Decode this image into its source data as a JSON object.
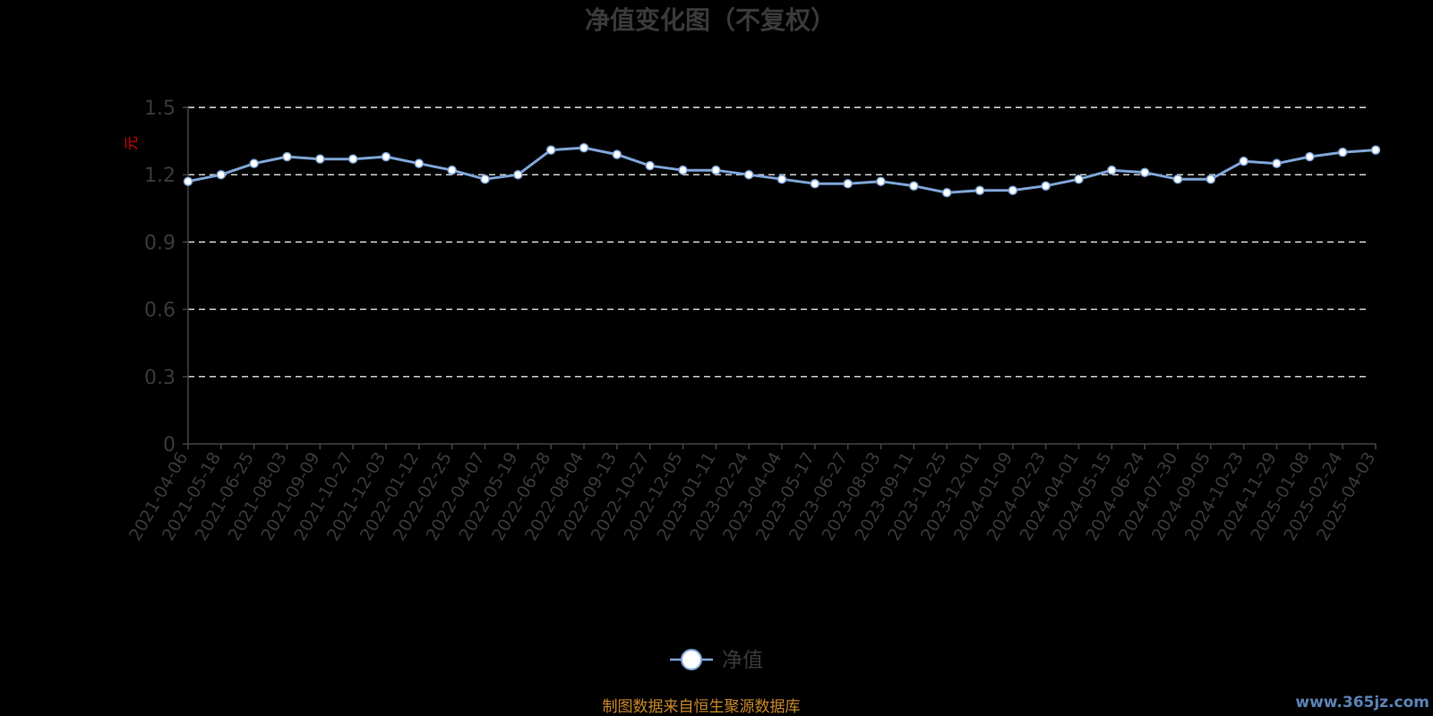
{
  "chart_data": {
    "type": "line",
    "title": "净值变化图（不复权）",
    "ylabel": "元",
    "ylim": [
      0,
      1.5
    ],
    "yticks": [
      "0",
      "0.3",
      "0.6",
      "0.9",
      "1.2",
      "1.5"
    ],
    "grid": true,
    "legend_position": "bottom-center",
    "line_color": "#7fa6d8",
    "x_tick_labels": [
      "2021-04-06",
      "2021-05-18",
      "2021-06-25",
      "2021-08-03",
      "2021-09-09",
      "2021-10-27",
      "2021-12-03",
      "2022-01-12",
      "2022-02-25",
      "2022-04-07",
      "2022-05-19",
      "2022-06-28",
      "2022-08-04",
      "2022-09-13",
      "2022-10-27",
      "2022-12-05",
      "2023-01-11",
      "2023-02-24",
      "2023-04-04",
      "2023-05-17",
      "2023-06-27",
      "2023-08-03",
      "2023-09-11",
      "2023-10-25",
      "2023-12-01",
      "2024-01-09",
      "2024-02-23",
      "2024-04-01",
      "2024-05-15",
      "2024-06-24",
      "2024-07-30",
      "2024-09-05",
      "2024-10-23",
      "2024-11-29",
      "2025-01-08",
      "2025-02-24",
      "2025-04-03"
    ],
    "series": [
      {
        "name": "净值",
        "x": [
          "2021-04-06",
          "2021-05-18",
          "2021-06-25",
          "2021-08-03",
          "2021-09-09",
          "2021-10-27",
          "2021-12-03",
          "2022-01-12",
          "2022-02-25",
          "2022-04-07",
          "2022-05-19",
          "2022-06-28",
          "2022-08-04",
          "2022-09-13",
          "2022-10-27",
          "2022-12-05",
          "2023-01-11",
          "2023-02-24",
          "2023-04-04",
          "2023-05-17",
          "2023-06-27",
          "2023-08-03",
          "2023-09-11",
          "2023-10-25",
          "2023-12-01",
          "2024-01-09",
          "2024-02-23",
          "2024-04-01",
          "2024-05-15",
          "2024-06-24",
          "2024-07-30",
          "2024-09-05",
          "2024-10-23",
          "2024-11-29",
          "2025-01-08",
          "2025-02-24",
          "2025-04-03"
        ],
        "values": [
          1.17,
          1.2,
          1.25,
          1.28,
          1.27,
          1.27,
          1.28,
          1.25,
          1.22,
          1.18,
          1.2,
          1.31,
          1.32,
          1.29,
          1.24,
          1.22,
          1.22,
          1.2,
          1.18,
          1.16,
          1.16,
          1.17,
          1.15,
          1.12,
          1.13,
          1.13,
          1.15,
          1.18,
          1.22,
          1.21,
          1.18,
          1.18,
          1.26,
          1.25,
          1.28,
          1.3,
          1.31
        ]
      }
    ]
  },
  "legend": {
    "label": "净值"
  },
  "footer": {
    "source": "制图数据来自恒生聚源数据库",
    "watermark": "www.365jz.com"
  }
}
